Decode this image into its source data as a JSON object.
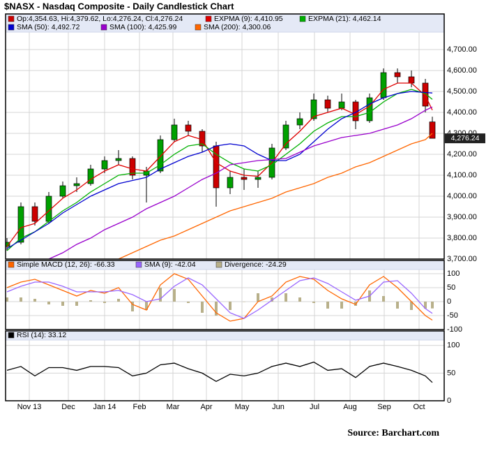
{
  "chart_data": [
    {
      "type": "candlestick",
      "title": "$NASX - Nasdaq Composite - Daily Candlestick Chart",
      "ohlc_label": "Op:4,354.63, Hi:4,379.62, Lo:4,276.24, Cl:4,276.24",
      "ohlc_color": "#cc0000",
      "up_color": "#00a000",
      "down_color": "#cc0000",
      "last_label": "4,276.24",
      "x": [
        0,
        1,
        2,
        3,
        4,
        5,
        6,
        7,
        8,
        9,
        10,
        11,
        12,
        13,
        14,
        15,
        16,
        17,
        18,
        19,
        20,
        21,
        22,
        23,
        24,
        25,
        26,
        27,
        28,
        29,
        30,
        30.5
      ],
      "open": [
        3760,
        3780,
        3950,
        3880,
        4000,
        4050,
        4060,
        4130,
        4170,
        4180,
        4100,
        4120,
        4270,
        4340,
        4310,
        4240,
        4040,
        4090,
        4080,
        4090,
        4230,
        4340,
        4370,
        4460,
        4420,
        4450,
        4360,
        4470,
        4590,
        4570,
        4540,
        4354.63
      ],
      "high": [
        3800,
        3970,
        3970,
        4020,
        4070,
        4090,
        4150,
        4190,
        4220,
        4190,
        4140,
        4290,
        4370,
        4360,
        4320,
        4260,
        4120,
        4130,
        4120,
        4250,
        4360,
        4400,
        4490,
        4480,
        4490,
        4460,
        4490,
        4610,
        4610,
        4600,
        4560,
        4379.62
      ],
      "low": [
        3740,
        3770,
        3860,
        3870,
        3990,
        4020,
        4050,
        4110,
        4150,
        4080,
        3970,
        4110,
        4260,
        4290,
        4210,
        3950,
        4010,
        4030,
        4040,
        4080,
        4220,
        4320,
        4360,
        4400,
        4410,
        4320,
        4350,
        4460,
        4540,
        4520,
        4400,
        4276.24
      ],
      "close": [
        3780,
        3950,
        3880,
        4000,
        4050,
        4060,
        4130,
        4170,
        4180,
        4100,
        4120,
        4270,
        4340,
        4310,
        4240,
        4040,
        4090,
        4080,
        4090,
        4230,
        4340,
        4370,
        4460,
        4420,
        4450,
        4360,
        4470,
        4590,
        4570,
        4540,
        4430,
        4276.24
      ],
      "series": [
        {
          "name": "EXPMA (9): 4,410.95",
          "color": "#e00000",
          "values": [
            3760,
            3850,
            3870,
            3930,
            3990,
            4030,
            4080,
            4120,
            4150,
            4130,
            4120,
            4190,
            4260,
            4290,
            4270,
            4160,
            4120,
            4100,
            4095,
            4160,
            4250,
            4310,
            4380,
            4400,
            4420,
            4390,
            4430,
            4510,
            4540,
            4540,
            4480,
            4410.95
          ]
        },
        {
          "name": "EXPMA (21): 4,462.14",
          "color": "#00b000",
          "values": [
            3740,
            3800,
            3830,
            3880,
            3930,
            3970,
            4020,
            4060,
            4100,
            4110,
            4110,
            4150,
            4200,
            4240,
            4250,
            4200,
            4160,
            4130,
            4120,
            4150,
            4200,
            4250,
            4310,
            4350,
            4380,
            4380,
            4400,
            4450,
            4490,
            4510,
            4490,
            4462.14
          ]
        },
        {
          "name": "SMA (50): 4,492.72",
          "color": "#0000d0",
          "values": [
            3750,
            3790,
            3830,
            3870,
            3920,
            3960,
            4000,
            4030,
            4060,
            4075,
            4090,
            4130,
            4160,
            4190,
            4210,
            4240,
            4250,
            4240,
            4200,
            4170,
            4170,
            4200,
            4260,
            4320,
            4370,
            4400,
            4440,
            4470,
            4490,
            4500,
            4495,
            4492.72
          ]
        },
        {
          "name": "SMA (100): 4,425.99",
          "color": "#9900cc",
          "values": [
            null,
            null,
            null,
            3700,
            3730,
            3770,
            3800,
            3840,
            3870,
            3900,
            3940,
            3970,
            4000,
            4040,
            4080,
            4110,
            4150,
            4160,
            4170,
            4175,
            4180,
            4210,
            4240,
            4260,
            4280,
            4290,
            4300,
            4320,
            4340,
            4370,
            4410,
            4425.99
          ]
        },
        {
          "name": "SMA (200): 4,300.06",
          "color": "#ff6600",
          "values": [
            null,
            null,
            null,
            null,
            null,
            null,
            null,
            null,
            3700,
            3730,
            3760,
            3790,
            3810,
            3840,
            3870,
            3900,
            3930,
            3950,
            3970,
            3990,
            4020,
            4040,
            4060,
            4090,
            4110,
            4140,
            4160,
            4190,
            4220,
            4250,
            4270,
            4300.06
          ]
        }
      ],
      "xlim": [
        -0.1,
        31.35
      ],
      "xticks": [
        {
          "value": 1.6,
          "label": "Nov 13"
        },
        {
          "value": 4.4,
          "label": "Dec"
        },
        {
          "value": 7,
          "label": "Jan 14"
        },
        {
          "value": 9.5,
          "label": "Feb"
        },
        {
          "value": 11.9,
          "label": "Mar"
        },
        {
          "value": 14.3,
          "label": "Apr"
        },
        {
          "value": 16.85,
          "label": "May"
        },
        {
          "value": 19.45,
          "label": "Jun"
        },
        {
          "value": 22.05,
          "label": "Jul"
        },
        {
          "value": 24.6,
          "label": "Aug"
        },
        {
          "value": 27.05,
          "label": "Sep"
        },
        {
          "value": 29.55,
          "label": "Oct"
        }
      ],
      "ylim": [
        3700,
        4870
      ],
      "yticks": [
        {
          "value": 3700,
          "label": "3,700.00"
        },
        {
          "value": 3800,
          "label": "3,800.00"
        },
        {
          "value": 3900,
          "label": "3,900.00"
        },
        {
          "value": 4000,
          "label": "4,000.00"
        },
        {
          "value": 4100,
          "label": "4,100.00"
        },
        {
          "value": 4200,
          "label": "4,200.00"
        },
        {
          "value": 4300,
          "label": "4,300.00"
        },
        {
          "value": 4400,
          "label": "4,400.00"
        },
        {
          "value": 4500,
          "label": "4,500.00"
        },
        {
          "value": 4600,
          "label": "4,600.00"
        },
        {
          "value": 4700,
          "label": "4,700.00"
        }
      ],
      "grid": true
    },
    {
      "type": "line",
      "series": [
        {
          "name": "Simple MACD (12, 26): -66.33",
          "color": "#ff6600",
          "values": [
            50,
            70,
            80,
            60,
            40,
            20,
            40,
            30,
            50,
            -10,
            -30,
            60,
            100,
            80,
            20,
            -40,
            -70,
            -60,
            0,
            20,
            70,
            90,
            80,
            40,
            10,
            -10,
            60,
            90,
            50,
            0,
            -50,
            -66.33
          ]
        },
        {
          "name": "SMA (9): -42.04",
          "color": "#9966ff",
          "values": [
            35,
            55,
            70,
            70,
            55,
            35,
            35,
            35,
            40,
            25,
            0,
            10,
            55,
            85,
            60,
            10,
            -40,
            -60,
            -30,
            5,
            40,
            75,
            85,
            65,
            35,
            5,
            20,
            70,
            75,
            30,
            -25,
            -42.04
          ]
        },
        {
          "name": "Divergence: -24.29",
          "color": "#b8b08a",
          "kind": "bar",
          "values": [
            15,
            15,
            10,
            -10,
            -15,
            -15,
            5,
            -5,
            10,
            -35,
            -30,
            50,
            45,
            -5,
            -40,
            -50,
            -30,
            0,
            30,
            15,
            30,
            15,
            -5,
            -25,
            -25,
            -15,
            40,
            20,
            -25,
            -30,
            -25,
            -24.29
          ]
        }
      ],
      "ylim": [
        -100,
        147.5
      ],
      "yticks": [
        100,
        50,
        0,
        -50,
        -100
      ],
      "grid": true
    },
    {
      "type": "line",
      "series": [
        {
          "name": "RSI (14): 33.12",
          "color": "#000000",
          "values": [
            55,
            62,
            45,
            60,
            60,
            55,
            62,
            62,
            60,
            45,
            50,
            65,
            68,
            58,
            50,
            35,
            48,
            45,
            50,
            62,
            68,
            62,
            70,
            55,
            58,
            42,
            62,
            68,
            62,
            55,
            45,
            33.12
          ]
        }
      ],
      "ylim": [
        0,
        126.25
      ],
      "yticks": [
        100,
        50,
        0
      ],
      "grid": true
    }
  ],
  "footer": {
    "source": "Source:  Barchart.com"
  }
}
